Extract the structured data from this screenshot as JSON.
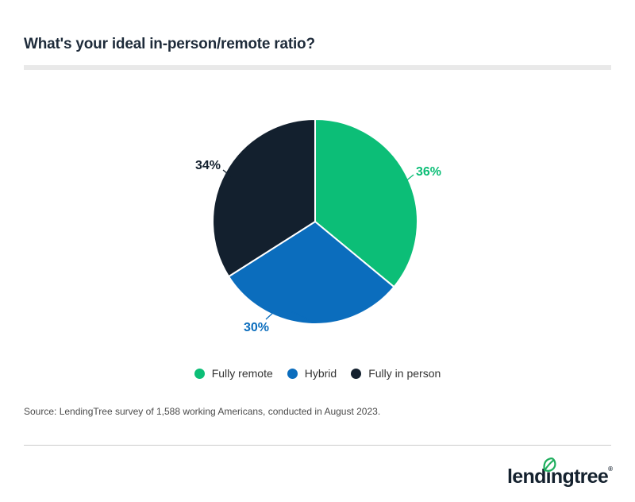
{
  "header": {
    "title": "What's your ideal in-person/remote ratio?"
  },
  "chart_data": {
    "type": "pie",
    "title": "What's your ideal in-person/remote ratio?",
    "start_angle_deg": 0,
    "direction": "clockwise",
    "slices": [
      {
        "label": "Fully remote",
        "value": 36,
        "unit": "%",
        "color": "#0cbe77"
      },
      {
        "label": "Hybrid",
        "value": 30,
        "unit": "%",
        "color": "#0b6dbd"
      },
      {
        "label": "Fully in person",
        "value": 34,
        "unit": "%",
        "color": "#13202e"
      }
    ],
    "legend_position": "bottom",
    "data_labels": [
      "36%",
      "30%",
      "34%"
    ]
  },
  "source": "Source: LendingTree survey of 1,588 working Americans, conducted in August 2023.",
  "footer": {
    "logo_text": "lendingtree",
    "registered": "®"
  },
  "colors": {
    "green": "#0cbe77",
    "blue": "#0b6dbd",
    "navy": "#13202e",
    "title_text": "#1e2b3a",
    "underline_bar": "#e9e9e9",
    "legend_text": "#333333",
    "source_text": "#4b4b4b",
    "divider": "#cccccc",
    "logo_navy": "#14212e",
    "logo_leaf_green": "#1fae5e"
  }
}
